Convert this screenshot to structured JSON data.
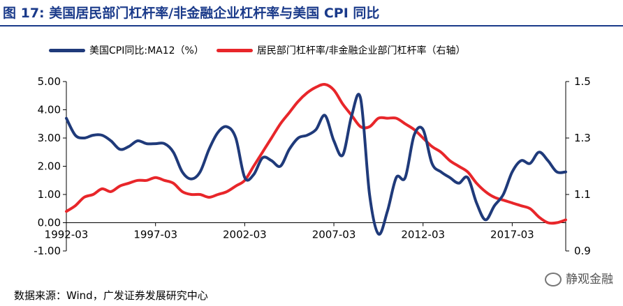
{
  "title": "图 17:  美国居民部门杠杆率/非金融企业杠杆率与美国 CPI 同比",
  "source_text": "数据来源：Wind，广发证券发展研究中心",
  "watermark_text": "静观金融",
  "colors": {
    "cpi": "#1f3a7a",
    "leverage": "#e8262a",
    "title": "#1a3a8a"
  },
  "chart_data": {
    "type": "line",
    "title": "美国居民部门杠杆率/非金融企业杠杆率与美国 CPI 同比",
    "x_tick_labels": [
      "1992-03",
      "1997-03",
      "2002-03",
      "2007-03",
      "2012-03",
      "2017-03"
    ],
    "x_tick_years": [
      1992.0,
      1997.0,
      2002.0,
      2007.0,
      2012.0,
      2017.0
    ],
    "xlim": [
      1992.0,
      2020.0
    ],
    "y_left": {
      "lim": [
        -1.0,
        5.0
      ],
      "ticks": [
        -1.0,
        0.0,
        1.0,
        2.0,
        3.0,
        4.0,
        5.0
      ],
      "tick_labels": [
        "-1.00",
        "0.00",
        "1.00",
        "2.00",
        "3.00",
        "4.00",
        "5.00"
      ]
    },
    "y_right": {
      "lim": [
        0.9,
        1.5
      ],
      "ticks": [
        0.9,
        1.1,
        1.3,
        1.5
      ],
      "tick_labels": [
        "0.9",
        "1.1",
        "1.3",
        "1.5"
      ]
    },
    "series": [
      {
        "name": "美国CPI同比:MA12（%）",
        "axis": "left",
        "color": "#1f3a7a",
        "points": [
          [
            1992.0,
            3.7
          ],
          [
            1992.5,
            3.1
          ],
          [
            1993.0,
            3.0
          ],
          [
            1993.5,
            3.1
          ],
          [
            1994.0,
            3.1
          ],
          [
            1994.5,
            2.9
          ],
          [
            1995.0,
            2.6
          ],
          [
            1995.5,
            2.7
          ],
          [
            1996.0,
            2.9
          ],
          [
            1996.5,
            2.8
          ],
          [
            1997.0,
            2.8
          ],
          [
            1997.5,
            2.8
          ],
          [
            1998.0,
            2.5
          ],
          [
            1998.5,
            1.8
          ],
          [
            1999.0,
            1.55
          ],
          [
            1999.5,
            1.8
          ],
          [
            2000.0,
            2.6
          ],
          [
            2000.5,
            3.2
          ],
          [
            2001.0,
            3.4
          ],
          [
            2001.5,
            3.0
          ],
          [
            2002.0,
            1.6
          ],
          [
            2002.5,
            1.7
          ],
          [
            2003.0,
            2.3
          ],
          [
            2003.5,
            2.2
          ],
          [
            2004.0,
            2.0
          ],
          [
            2004.5,
            2.6
          ],
          [
            2005.0,
            3.0
          ],
          [
            2005.5,
            3.1
          ],
          [
            2006.0,
            3.3
          ],
          [
            2006.5,
            3.8
          ],
          [
            2007.0,
            2.9
          ],
          [
            2007.5,
            2.4
          ],
          [
            2008.0,
            3.8
          ],
          [
            2008.5,
            4.4
          ],
          [
            2009.0,
            1.0
          ],
          [
            2009.5,
            -0.4
          ],
          [
            2010.0,
            0.4
          ],
          [
            2010.5,
            1.6
          ],
          [
            2011.0,
            1.6
          ],
          [
            2011.5,
            3.1
          ],
          [
            2012.0,
            3.3
          ],
          [
            2012.5,
            2.1
          ],
          [
            2013.0,
            1.8
          ],
          [
            2013.5,
            1.6
          ],
          [
            2014.0,
            1.4
          ],
          [
            2014.5,
            1.6
          ],
          [
            2015.0,
            0.7
          ],
          [
            2015.5,
            0.1
          ],
          [
            2016.0,
            0.6
          ],
          [
            2016.5,
            1.0
          ],
          [
            2017.0,
            1.8
          ],
          [
            2017.5,
            2.2
          ],
          [
            2018.0,
            2.1
          ],
          [
            2018.5,
            2.5
          ],
          [
            2019.0,
            2.2
          ],
          [
            2019.5,
            1.8
          ],
          [
            2020.0,
            1.8
          ]
        ]
      },
      {
        "name": "居民部门杠杆率/非金融企业部门杠杆率（右轴）",
        "axis": "right",
        "color": "#e8262a",
        "points": [
          [
            1992.0,
            1.04
          ],
          [
            1992.5,
            1.06
          ],
          [
            1993.0,
            1.09
          ],
          [
            1993.5,
            1.1
          ],
          [
            1994.0,
            1.12
          ],
          [
            1994.5,
            1.11
          ],
          [
            1995.0,
            1.13
          ],
          [
            1995.5,
            1.14
          ],
          [
            1996.0,
            1.15
          ],
          [
            1996.5,
            1.15
          ],
          [
            1997.0,
            1.16
          ],
          [
            1997.5,
            1.15
          ],
          [
            1998.0,
            1.14
          ],
          [
            1998.5,
            1.11
          ],
          [
            1999.0,
            1.1
          ],
          [
            1999.5,
            1.1
          ],
          [
            2000.0,
            1.09
          ],
          [
            2000.5,
            1.1
          ],
          [
            2001.0,
            1.11
          ],
          [
            2001.5,
            1.13
          ],
          [
            2002.0,
            1.15
          ],
          [
            2002.5,
            1.2
          ],
          [
            2003.0,
            1.25
          ],
          [
            2003.5,
            1.3
          ],
          [
            2004.0,
            1.35
          ],
          [
            2004.5,
            1.39
          ],
          [
            2005.0,
            1.43
          ],
          [
            2005.5,
            1.46
          ],
          [
            2006.0,
            1.48
          ],
          [
            2006.5,
            1.49
          ],
          [
            2007.0,
            1.47
          ],
          [
            2007.5,
            1.42
          ],
          [
            2008.0,
            1.38
          ],
          [
            2008.5,
            1.34
          ],
          [
            2009.0,
            1.34
          ],
          [
            2009.5,
            1.37
          ],
          [
            2010.0,
            1.37
          ],
          [
            2010.5,
            1.37
          ],
          [
            2011.0,
            1.35
          ],
          [
            2011.5,
            1.33
          ],
          [
            2012.0,
            1.3
          ],
          [
            2012.5,
            1.27
          ],
          [
            2013.0,
            1.25
          ],
          [
            2013.5,
            1.22
          ],
          [
            2014.0,
            1.2
          ],
          [
            2014.5,
            1.18
          ],
          [
            2015.0,
            1.14
          ],
          [
            2015.5,
            1.11
          ],
          [
            2016.0,
            1.09
          ],
          [
            2016.5,
            1.08
          ],
          [
            2017.0,
            1.07
          ],
          [
            2017.5,
            1.06
          ],
          [
            2018.0,
            1.05
          ],
          [
            2018.5,
            1.02
          ],
          [
            2019.0,
            1.0
          ],
          [
            2019.5,
            1.0
          ],
          [
            2020.0,
            1.01
          ]
        ]
      }
    ]
  }
}
